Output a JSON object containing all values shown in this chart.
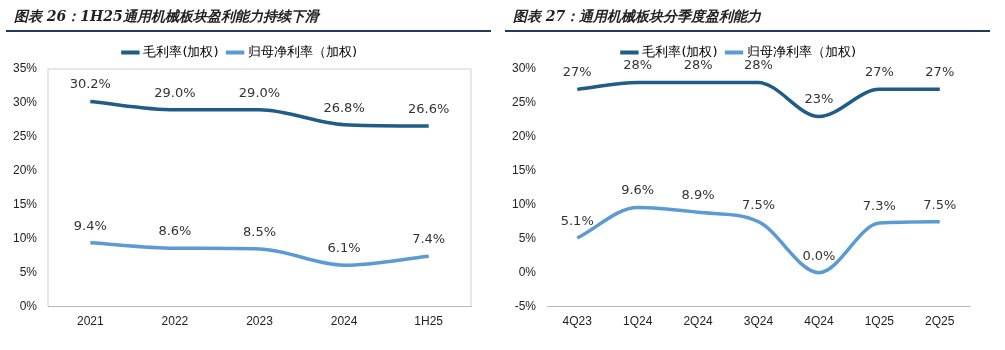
{
  "chart_data": [
    {
      "type": "line",
      "title": "图表 26：1H25通用机械板块盈利能力持续下滑",
      "categories": [
        "2021",
        "2022",
        "2023",
        "2024",
        "1H25"
      ],
      "series": [
        {
          "name": "毛利率(加权)",
          "color": "#1f5c87",
          "values": [
            30.2,
            29.0,
            29.0,
            26.8,
            26.6
          ],
          "value_labels": [
            "30.2%",
            "29.0%",
            "29.0%",
            "26.8%",
            "26.6%"
          ]
        },
        {
          "name": "归母净利率（加权)",
          "color": "#5b9bd5",
          "values": [
            9.4,
            8.6,
            8.5,
            6.1,
            7.4
          ],
          "value_labels": [
            "9.4%",
            "8.6%",
            "8.5%",
            "6.1%",
            "7.4%"
          ]
        }
      ],
      "ylim": [
        0,
        35
      ],
      "yticks": [
        {
          "value": 0,
          "label": "0%"
        },
        {
          "value": 5,
          "label": "5%"
        },
        {
          "value": 10,
          "label": "10%"
        },
        {
          "value": 15,
          "label": "15%"
        },
        {
          "value": 20,
          "label": "20%"
        },
        {
          "value": 25,
          "label": "25%"
        },
        {
          "value": 30,
          "label": "30%"
        },
        {
          "value": 35,
          "label": "35%"
        }
      ],
      "legend": "top",
      "grid": false,
      "marker": "none",
      "line_style": "solid"
    },
    {
      "type": "line",
      "title": "图表 27：通用机械板块分季度盈利能力",
      "categories": [
        "4Q23",
        "1Q24",
        "2Q24",
        "3Q24",
        "4Q24",
        "1Q25",
        "2Q25"
      ],
      "series": [
        {
          "name": "毛利率(加权)",
          "color": "#1f5c87",
          "values": [
            27,
            28,
            28,
            28,
            23,
            27,
            27
          ],
          "value_labels": [
            "27%",
            "28%",
            "28%",
            "28%",
            "23%",
            "27%",
            "27%"
          ]
        },
        {
          "name": "归母净利率（加权)",
          "color": "#5b9bd5",
          "values": [
            5.1,
            9.6,
            8.9,
            7.5,
            0.0,
            7.3,
            7.5
          ],
          "value_labels": [
            "5.1%",
            "9.6%",
            "8.9%",
            "7.5%",
            "0.0%",
            "7.3%",
            "7.5%"
          ]
        }
      ],
      "ylim": [
        -5,
        30
      ],
      "yticks": [
        {
          "value": -5,
          "label": "-5%"
        },
        {
          "value": 0,
          "label": "0%"
        },
        {
          "value": 5,
          "label": "5%"
        },
        {
          "value": 10,
          "label": "10%"
        },
        {
          "value": 15,
          "label": "15%"
        },
        {
          "value": 20,
          "label": "20%"
        },
        {
          "value": 25,
          "label": "25%"
        },
        {
          "value": 30,
          "label": "30%"
        }
      ],
      "legend": "top",
      "grid": false,
      "marker": "none",
      "line_style": "solid"
    }
  ]
}
